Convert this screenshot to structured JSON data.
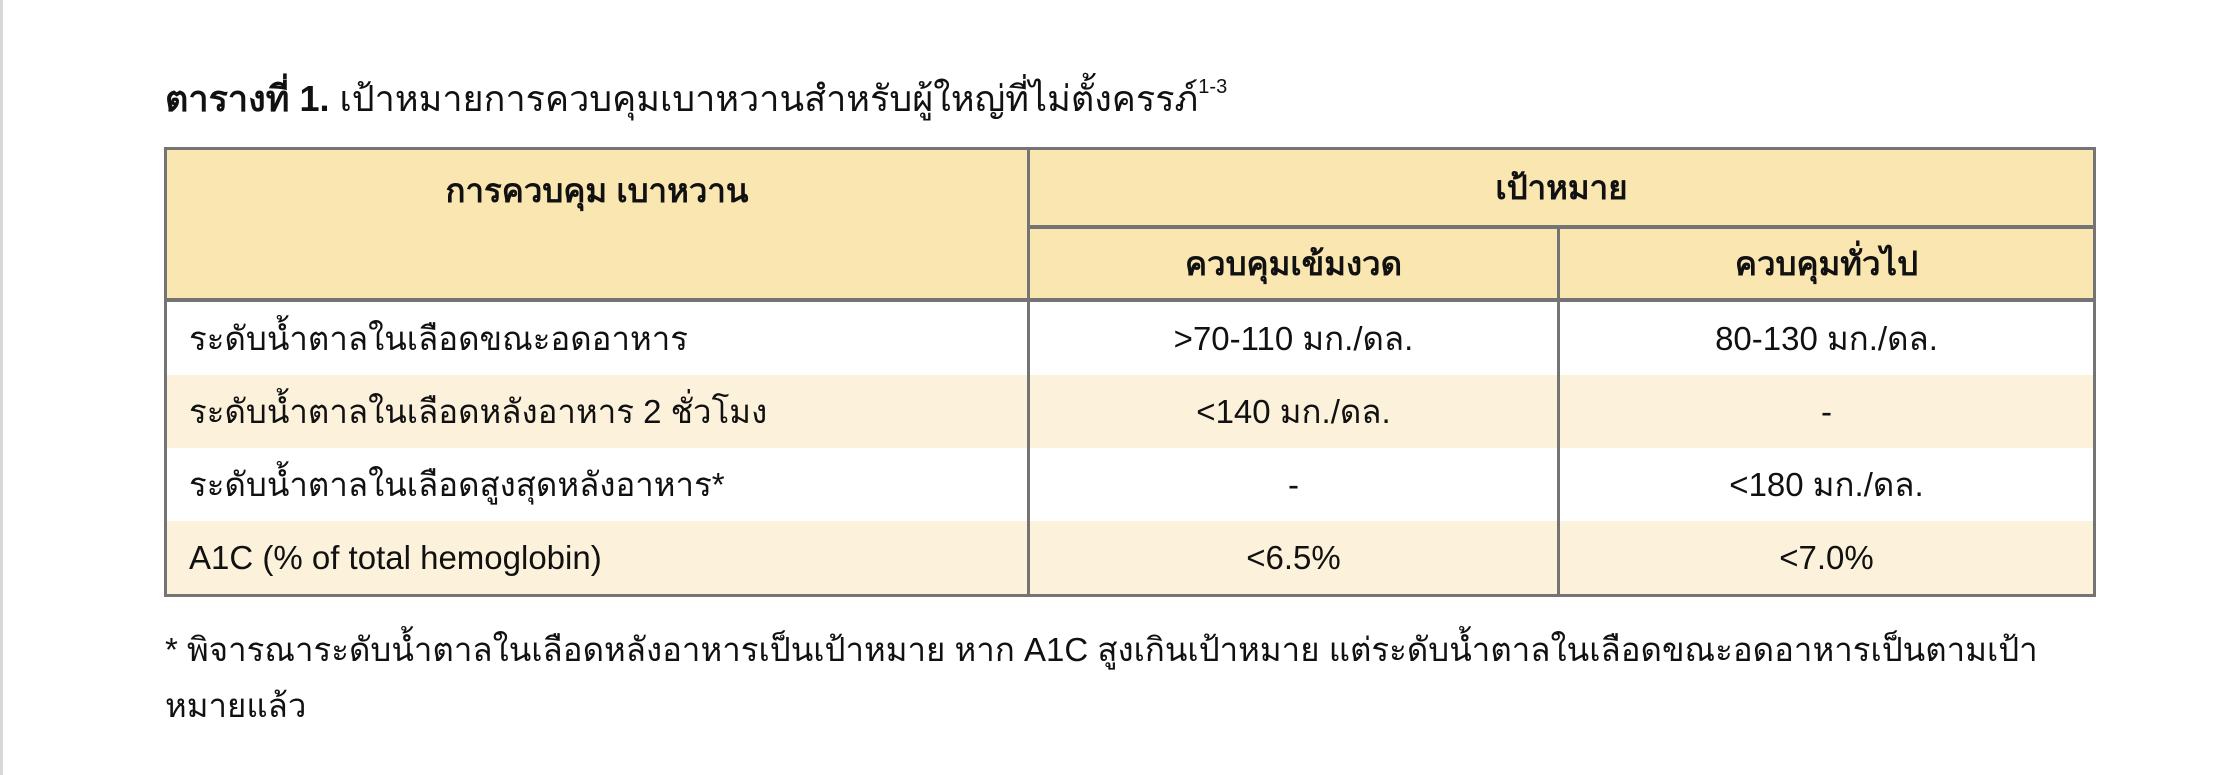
{
  "title": {
    "label": "ตารางที่ 1.",
    "text": "เป้าหมายการควบคุมเบาหวานสำหรับผู้ใหญ่ที่ไม่ตั้งครรภ์",
    "superscript": "1-3"
  },
  "table": {
    "headers": {
      "control": "การควบคุม เบาหวาน",
      "target": "เป้าหมาย",
      "strict": "ควบคุมเข้มงวด",
      "general": "ควบคุมทั่วไป"
    },
    "rows": [
      {
        "label": "ระดับน้ำตาลในเลือดขณะอดอาหาร",
        "strict": ">70-110 มก./ดล.",
        "general": "80-130 มก./ดล."
      },
      {
        "label": "ระดับน้ำตาลในเลือดหลังอาหาร 2 ชั่วโมง",
        "strict": "<140 มก./ดล.",
        "general": "-"
      },
      {
        "label": "ระดับน้ำตาลในเลือดสูงสุดหลังอาหาร*",
        "strict": "-",
        "general": "<180 มก./ดล."
      },
      {
        "label": "A1C (% of total hemoglobin)",
        "strict": "<6.5%",
        "general": "<7.0%"
      }
    ],
    "colors": {
      "header": "#f9e6b0",
      "alt_row": "#fcf2dc",
      "border": "#747474"
    }
  },
  "footnote": "* พิจารณาระดับน้ำตาลในเลือดหลังอาหารเป็นเป้าหมาย หาก A1C สูงเกินเป้าหมาย แต่ระดับน้ำตาลในเลือดขณะอดอาหารเป็นตามเป้าหมายแล้ว"
}
